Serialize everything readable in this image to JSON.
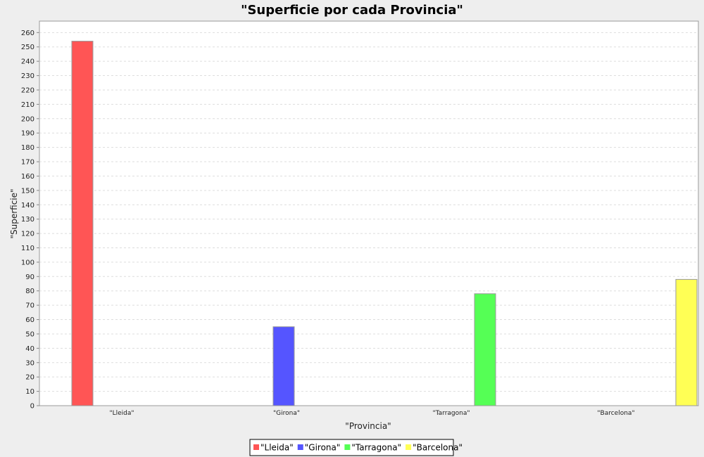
{
  "chart_data": {
    "type": "bar",
    "title": "\"Superficie por cada Provincia\"",
    "xlabel": "\"Provincia\"",
    "ylabel": "\"Superficie\"",
    "categories": [
      "\"Lleida\"",
      "\"Girona\"",
      "\"Tarragona\"",
      "\"Barcelona\""
    ],
    "series": [
      {
        "name": "\"Lleida\"",
        "values": [
          254,
          null,
          null,
          null
        ],
        "color": "#ff5555"
      },
      {
        "name": "\"Girona\"",
        "values": [
          null,
          55,
          null,
          null
        ],
        "color": "#5555ff"
      },
      {
        "name": "\"Tarragona\"",
        "values": [
          null,
          null,
          78,
          null
        ],
        "color": "#55ff55"
      },
      {
        "name": "\"Barcelona\"",
        "values": [
          null,
          null,
          null,
          88
        ],
        "color": "#ffff55"
      }
    ],
    "ylim": [
      0,
      268
    ],
    "yticks": [
      0,
      10,
      20,
      30,
      40,
      50,
      60,
      70,
      80,
      90,
      100,
      110,
      120,
      130,
      140,
      150,
      160,
      170,
      180,
      190,
      200,
      210,
      220,
      230,
      240,
      250,
      260
    ],
    "grid": true,
    "legend_position": "bottom"
  }
}
